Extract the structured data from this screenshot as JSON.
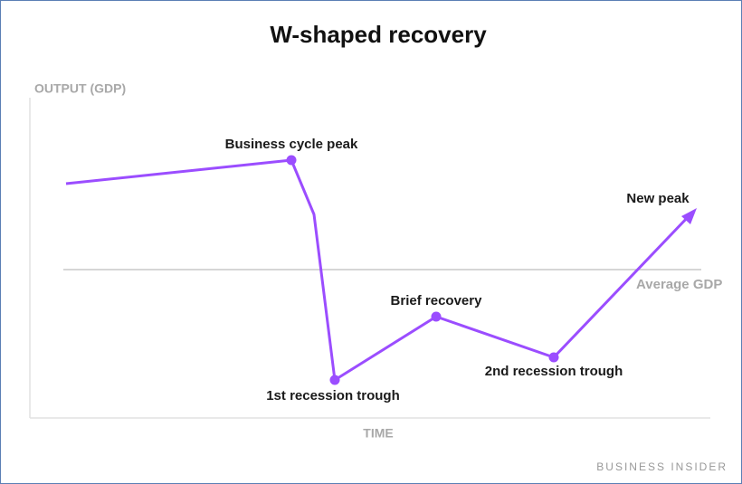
{
  "title": "W-shaped recovery",
  "y_axis_label": "OUTPUT (GDP)",
  "x_axis_label": "TIME",
  "reference_line_label": "Average GDP",
  "annotations": [
    "Business cycle peak",
    "1st recession trough",
    "Brief recovery",
    "2nd recession trough",
    "New peak"
  ],
  "source": "BUSINESS INSIDER"
}
